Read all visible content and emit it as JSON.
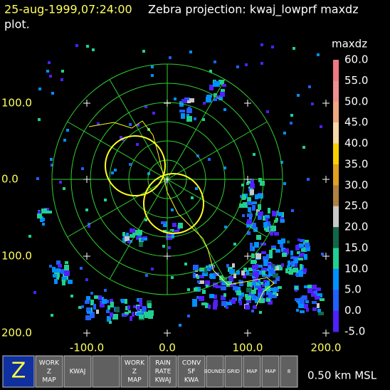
{
  "header": {
    "timestamp": "25-aug-1999,07:24:00",
    "title": "Zebra projection: kwaj_lowprf maxdz",
    "title_cont": "plot."
  },
  "colorbar": {
    "title": "maxdz",
    "labels": [
      "60.0",
      "55.0",
      "50.0",
      "45.0",
      "40.0",
      "35.0",
      "30.0",
      "25.0",
      "20.0",
      "15.0",
      "10.0",
      "5.0",
      "0.0",
      "-5.0"
    ],
    "colors": [
      "#f07880",
      "#f09090",
      "#f0a880",
      "#f8d8a8",
      "#f8d000",
      "#e0a020",
      "#b08040",
      "#c8c8c8",
      "#106848",
      "#20d090",
      "#0090ff",
      "#2060ff",
      "#5020ff"
    ]
  },
  "axes": {
    "y_labels": [
      "100.0",
      "0.0",
      "100.0",
      "200.0"
    ],
    "x_labels": [
      "-100.0",
      "0.0",
      "100.0",
      "200.0"
    ]
  },
  "toolbar": {
    "icons": [
      {
        "lines": [
          "Z"
        ]
      },
      {
        "lines": [
          "WORK",
          "Z",
          "MAP"
        ]
      },
      {
        "lines": [
          "KWAJ"
        ]
      },
      {
        "lines": [
          ""
        ]
      },
      {
        "lines": [
          "WORK",
          "Z",
          "MAP"
        ]
      },
      {
        "lines": [
          "RAIN",
          "RATE",
          "KWAJ"
        ]
      },
      {
        "lines": [
          "CONV",
          "SF",
          "KWA"
        ]
      },
      {
        "lines": [
          "BOUNDS"
        ]
      },
      {
        "lines": [
          "GRID"
        ]
      },
      {
        "lines": [
          "MAP"
        ]
      },
      {
        "lines": [
          "MAP"
        ]
      },
      {
        "lines": [
          "8"
        ]
      }
    ],
    "status": "0.50 km MSL"
  }
}
